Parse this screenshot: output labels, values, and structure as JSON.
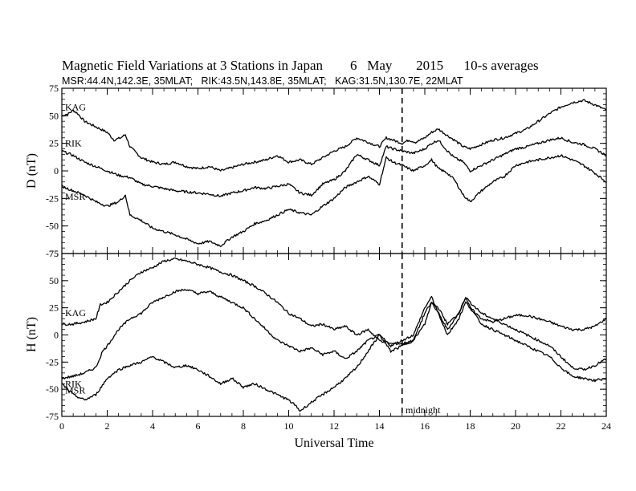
{
  "title": {
    "text": "Magnetic Field Variations at 3 Stations in Japan        6   May       2015      10-s averages",
    "stations": "MSR:44.4N,142.3E, 35MLAT;   RIK:43.5N,143.8E, 35MLAT;   KAG:31.5N,130.7E, 22MLAT"
  },
  "colors": {
    "line": "#000000",
    "background": "#ffffff"
  },
  "chart_data": [
    {
      "type": "line",
      "panel": "top",
      "ylabel": "D (nT)",
      "xlabel": "",
      "xlim": [
        0,
        24
      ],
      "ylim": [
        -75,
        75
      ],
      "yticks": [
        -75,
        -50,
        -25,
        0,
        25,
        50,
        75
      ],
      "xticks": [
        0,
        2,
        4,
        6,
        8,
        10,
        12,
        14,
        16,
        18,
        20,
        22,
        24
      ],
      "annotation": {
        "x": 15,
        "style": "dashed"
      },
      "series": [
        {
          "name": "KAG",
          "x": [
            0,
            0.3,
            0.5,
            0.7,
            1,
            1.5,
            2,
            2.3,
            2.6,
            2.8,
            3,
            3.5,
            4,
            4.5,
            5,
            5.5,
            6,
            6.5,
            7,
            7.5,
            8,
            8.5,
            9,
            9.5,
            10,
            10.5,
            11,
            11.5,
            12,
            12.5,
            13,
            13.5,
            14,
            14.3,
            14.6,
            15,
            15.3,
            15.6,
            16,
            16.3,
            16.6,
            17,
            17.3,
            17.7,
            18,
            18.5,
            19,
            19.5,
            20,
            20.5,
            21,
            21.5,
            22,
            22.5,
            23,
            23.5,
            24
          ],
          "values": [
            50,
            52,
            55,
            52,
            45,
            40,
            35,
            28,
            30,
            33,
            22,
            12,
            8,
            6,
            8,
            4,
            2,
            4,
            0,
            3,
            6,
            8,
            10,
            14,
            8,
            10,
            6,
            12,
            18,
            22,
            30,
            26,
            22,
            30,
            28,
            25,
            28,
            26,
            30,
            35,
            38,
            32,
            28,
            22,
            20,
            24,
            28,
            30,
            34,
            38,
            45,
            52,
            58,
            62,
            64,
            60,
            55
          ]
        },
        {
          "name": "RIK",
          "x": [
            0,
            0.5,
            1,
            1.5,
            2,
            2.5,
            3,
            3.5,
            4,
            4.5,
            5,
            5.5,
            6,
            6.5,
            7,
            7.5,
            8,
            8.5,
            9,
            9.5,
            10,
            10.5,
            11,
            11.5,
            12,
            12.5,
            13,
            13.5,
            14,
            14.3,
            14.6,
            15,
            15.5,
            16,
            16.3,
            16.6,
            17,
            17.3,
            17.7,
            18,
            18.5,
            19,
            19.5,
            20,
            20.5,
            21,
            21.5,
            22,
            22.5,
            23,
            23.5,
            24
          ],
          "values": [
            18,
            14,
            8,
            4,
            0,
            -4,
            -6,
            -12,
            -14,
            -16,
            -18,
            -19,
            -20,
            -21,
            -23,
            -20,
            -18,
            -15,
            -16,
            -14,
            -12,
            -20,
            -22,
            -12,
            -8,
            0,
            15,
            10,
            5,
            22,
            20,
            18,
            16,
            20,
            25,
            28,
            18,
            12,
            8,
            0,
            5,
            10,
            15,
            20,
            22,
            25,
            28,
            30,
            26,
            24,
            20,
            14
          ]
        },
        {
          "name": "MSR",
          "x": [
            0,
            0.5,
            1,
            1.5,
            2,
            2.5,
            2.8,
            3,
            3.5,
            4,
            4.5,
            5,
            5.5,
            6,
            6.5,
            7,
            7.5,
            8,
            8.5,
            9,
            9.5,
            10,
            10.5,
            11,
            11.5,
            12,
            12.5,
            13,
            13.5,
            14,
            14.3,
            14.6,
            15,
            15.5,
            16,
            16.3,
            16.6,
            17,
            17.3,
            17.7,
            18,
            18.5,
            19,
            19.5,
            20,
            20.5,
            21,
            21.5,
            22,
            22.5,
            23,
            23.5,
            24
          ],
          "values": [
            -14,
            -18,
            -22,
            -28,
            -32,
            -28,
            -22,
            -40,
            -45,
            -52,
            -55,
            -58,
            -62,
            -66,
            -64,
            -68,
            -60,
            -55,
            -48,
            -45,
            -40,
            -35,
            -38,
            -40,
            -32,
            -25,
            -15,
            -10,
            -5,
            -12,
            12,
            8,
            5,
            0,
            5,
            10,
            2,
            -2,
            -8,
            -22,
            -28,
            -18,
            -10,
            -5,
            5,
            8,
            10,
            12,
            14,
            10,
            5,
            -2,
            -10
          ]
        }
      ]
    },
    {
      "type": "line",
      "panel": "bottom",
      "ylabel": "H (nT)",
      "xlabel": "Universal Time",
      "xlim": [
        0,
        24
      ],
      "ylim": [
        -75,
        75
      ],
      "yticks": [
        -75,
        -50,
        -25,
        0,
        25,
        50,
        75
      ],
      "xticks": [
        0,
        2,
        4,
        6,
        8,
        10,
        12,
        14,
        16,
        18,
        20,
        22,
        24
      ],
      "annotation": {
        "x": 15,
        "style": "dashed",
        "label": "midnight"
      },
      "series": [
        {
          "name": "KAG",
          "x": [
            0,
            0.5,
            1,
            1.5,
            1.7,
            2,
            2.5,
            3,
            3.5,
            4,
            4.5,
            5,
            5.5,
            6,
            6.5,
            7,
            7.5,
            8,
            8.5,
            9,
            9.5,
            10,
            10.5,
            11,
            11.5,
            12,
            12.5,
            13,
            13.5,
            14,
            14.5,
            15,
            15.5,
            16,
            16.3,
            16.6,
            17,
            17.5,
            17.8,
            18,
            18.5,
            19,
            19.5,
            20,
            20.5,
            21,
            21.5,
            22,
            22.5,
            23,
            23.5,
            24
          ],
          "values": [
            10,
            10,
            12,
            15,
            28,
            30,
            40,
            50,
            58,
            62,
            68,
            70,
            68,
            65,
            62,
            58,
            55,
            50,
            45,
            38,
            30,
            20,
            15,
            8,
            10,
            5,
            8,
            0,
            5,
            -5,
            -8,
            -8,
            -5,
            20,
            30,
            25,
            10,
            20,
            35,
            25,
            15,
            12,
            15,
            18,
            18,
            15,
            12,
            8,
            5,
            5,
            8,
            15
          ]
        },
        {
          "name": "RIK",
          "x": [
            0,
            0.5,
            1,
            1.5,
            1.8,
            2,
            2.5,
            3,
            3.5,
            4,
            4.5,
            5,
            5.5,
            6,
            6.5,
            7,
            7.5,
            8,
            8.5,
            9,
            9.5,
            10,
            10.5,
            11,
            11.5,
            12,
            12.5,
            13,
            13.5,
            14,
            14.5,
            15,
            15.5,
            16,
            16.3,
            16.6,
            17,
            17.5,
            17.8,
            18,
            18.5,
            19,
            19.5,
            20,
            20.5,
            21,
            21.5,
            22,
            22.5,
            23,
            23.5,
            24
          ],
          "values": [
            -40,
            -38,
            -35,
            -30,
            -15,
            -10,
            5,
            15,
            20,
            30,
            35,
            40,
            42,
            38,
            40,
            35,
            30,
            25,
            15,
            5,
            -5,
            -10,
            -15,
            -12,
            -18,
            -15,
            -22,
            -15,
            -5,
            0,
            -10,
            -5,
            0,
            25,
            35,
            20,
            5,
            20,
            35,
            30,
            20,
            15,
            10,
            5,
            0,
            -5,
            -10,
            -20,
            -30,
            -32,
            -28,
            -22
          ]
        },
        {
          "name": "MSR",
          "x": [
            0,
            0.5,
            1,
            1.5,
            2,
            2.5,
            3,
            3.5,
            4,
            4.5,
            5,
            5.5,
            6,
            6.5,
            7,
            7.5,
            8,
            8.5,
            9,
            9.5,
            10,
            10.3,
            10.5,
            11,
            11.5,
            12,
            12.5,
            13,
            13.5,
            14,
            14.5,
            15,
            15.5,
            16,
            16.3,
            16.6,
            17,
            17.5,
            17.8,
            18,
            18.5,
            19,
            19.5,
            20,
            20.5,
            21,
            21.5,
            22,
            22.5,
            23,
            23.5,
            24
          ],
          "values": [
            -45,
            -55,
            -60,
            -55,
            -40,
            -32,
            -28,
            -25,
            -20,
            -25,
            -30,
            -28,
            -32,
            -38,
            -45,
            -40,
            -48,
            -45,
            -50,
            -55,
            -60,
            -65,
            -70,
            -62,
            -55,
            -48,
            -40,
            -30,
            -15,
            0,
            -15,
            -10,
            -5,
            10,
            30,
            20,
            0,
            15,
            30,
            25,
            10,
            5,
            0,
            -5,
            -10,
            -15,
            -20,
            -30,
            -38,
            -40,
            -42,
            -40
          ]
        }
      ]
    }
  ]
}
